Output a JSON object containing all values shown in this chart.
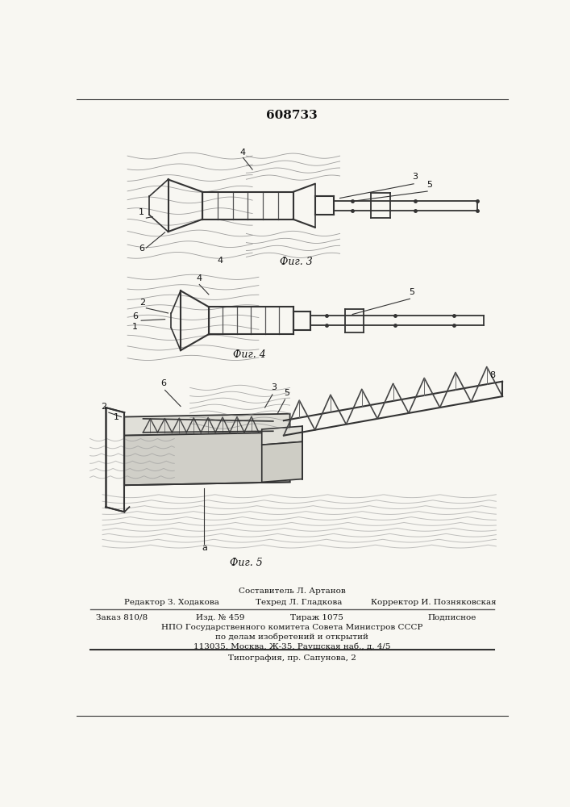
{
  "title": "608733",
  "bg_color": "#f8f7f2",
  "fig3_label": "Фиг. 3",
  "fig4_label": "Фиг. 4",
  "fig5_label": "Фиг. 5",
  "footer_line1": "Составитель Л. Артанов",
  "footer_line2_left": "Редактор З. Ходакова",
  "footer_line2_mid": "Техред Л. Гладкова",
  "footer_line2_right": "Корректор И. Позняковская",
  "footer_line3_col1": "Заказ 810/8",
  "footer_line3_col2": "Изд. № 459",
  "footer_line3_col3": "Тираж 1075",
  "footer_line3_col4": "Подписное",
  "footer_line4": "НПО Государственного комитета Совета Министров СССР",
  "footer_line5": "по делам изобретений и открытий",
  "footer_line6": "113035, Москва, Ж-35, Раушская наб., д. 4/5",
  "footer_last": "Типография, пр. Сапунова, 2"
}
